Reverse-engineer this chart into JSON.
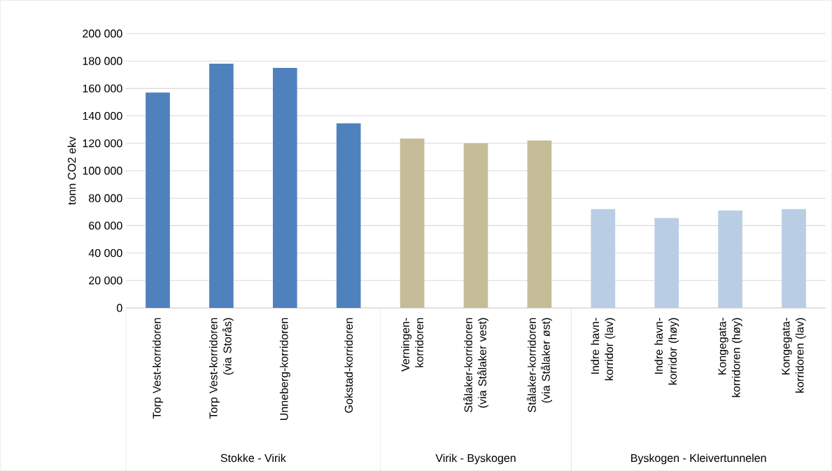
{
  "chart_data": {
    "type": "bar",
    "ylabel": "tonn CO2 ekv",
    "categories": [
      "Torp Vest-korridoren",
      "Torp Vest-korridoren (via Storås)",
      "Unneberg-korridoren",
      "Gokstad-korridoren",
      "Verningen-korridoren",
      "Stålaker-korridoren (via Stålaker vest)",
      "Stålaker-korridoren (via Stålaker øst)",
      "Indre havn-korridor (lav)",
      "Indre havn-korridor (høy)",
      "Kongegata-korridoren (høy)",
      "Kongegata-korridoren (lav)"
    ],
    "values": [
      157000,
      178000,
      175000,
      134500,
      123500,
      120000,
      122000,
      72000,
      65500,
      71000,
      72000
    ],
    "colors": [
      "#4f81bd",
      "#4f81bd",
      "#4f81bd",
      "#4f81bd",
      "#c4bd97",
      "#c4bd97",
      "#c4bd97",
      "#b9cde5",
      "#b9cde5",
      "#b9cde5",
      "#b9cde5"
    ],
    "ylim": [
      0,
      200000
    ],
    "yticks": [
      0,
      {
        "value": 20000,
        "label": "20 000"
      },
      {
        "value": 40000,
        "label": "40 000"
      },
      {
        "value": 60000,
        "label": "60 000"
      },
      {
        "value": 80000,
        "label": "80 000"
      },
      {
        "value": 100000,
        "label": "100 000"
      },
      {
        "value": 120000,
        "label": "120 000"
      },
      {
        "value": 140000,
        "label": "140 000"
      },
      {
        "value": 160000,
        "label": "160 000"
      },
      {
        "value": 180000,
        "label": "180 000"
      },
      {
        "value": 200000,
        "label": "200 000"
      }
    ],
    "grid": "y",
    "annotations": [
      "Stokke - Virik",
      "Virik - Byskogen",
      "Byskogen - Kleivertunnelen"
    ]
  }
}
